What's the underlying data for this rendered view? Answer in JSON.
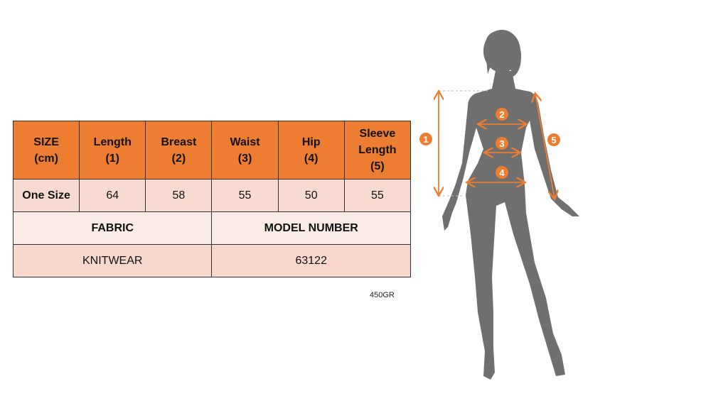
{
  "table": {
    "headers": [
      [
        "SIZE",
        "(cm)"
      ],
      [
        "Length",
        "(1)"
      ],
      [
        "Breast",
        "(2)"
      ],
      [
        "Waist",
        "(3)"
      ],
      [
        "Hip",
        "(4)"
      ],
      [
        "Sleeve",
        "Length",
        "(5)"
      ]
    ],
    "size_row": [
      "One Size",
      "64",
      "58",
      "55",
      "50",
      "55"
    ],
    "info_labels": [
      "FABRIC",
      "MODEL NUMBER"
    ],
    "info_values": [
      "KNITWEAR",
      "63122"
    ]
  },
  "weight_note": "450GR",
  "figure": {
    "markers": [
      "1",
      "2",
      "3",
      "4",
      "5"
    ],
    "accent_color": "#ED7D31",
    "silhouette_color": "#6F6F6F"
  }
}
